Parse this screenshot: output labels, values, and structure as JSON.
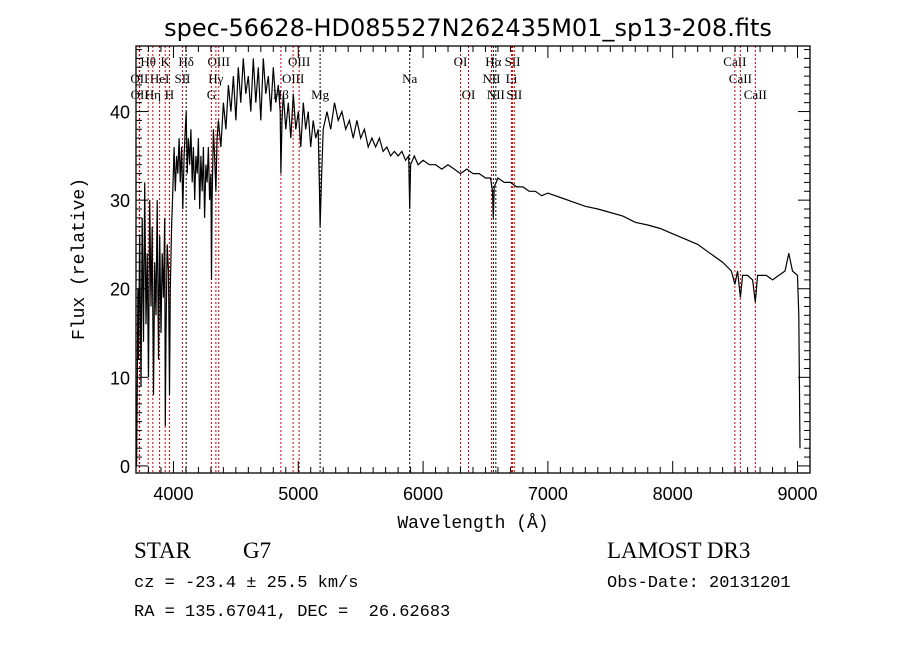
{
  "chart_data": {
    "type": "line",
    "title": "spec-56628-HD085527N262435M01_sp13-208.fits",
    "xlabel": "Wavelength (Å)",
    "ylabel": "Flux (relative)",
    "xlim": [
      3700,
      9100
    ],
    "ylim": [
      -0.8,
      47.4
    ],
    "x_ticks": [
      4000,
      5000,
      6000,
      7000,
      8000,
      9000
    ],
    "y_ticks": [
      0,
      10,
      20,
      30,
      40
    ],
    "grid": false,
    "series": [
      {
        "name": "spectrum",
        "color": "#000000",
        "wavelength": [
          3705,
          3710,
          3715,
          3720,
          3730,
          3740,
          3750,
          3760,
          3770,
          3780,
          3790,
          3800,
          3810,
          3820,
          3830,
          3840,
          3850,
          3860,
          3870,
          3880,
          3890,
          3900,
          3910,
          3920,
          3930,
          3935,
          3940,
          3950,
          3960,
          3968,
          3975,
          3985,
          3995,
          4005,
          4015,
          4025,
          4035,
          4045,
          4055,
          4065,
          4075,
          4085,
          4095,
          4102,
          4110,
          4120,
          4130,
          4140,
          4150,
          4160,
          4170,
          4180,
          4190,
          4200,
          4210,
          4220,
          4230,
          4240,
          4250,
          4260,
          4270,
          4280,
          4290,
          4300,
          4305,
          4310,
          4320,
          4330,
          4340,
          4350,
          4360,
          4380,
          4400,
          4420,
          4440,
          4460,
          4480,
          4500,
          4520,
          4540,
          4560,
          4580,
          4600,
          4620,
          4640,
          4660,
          4680,
          4700,
          4720,
          4740,
          4760,
          4780,
          4800,
          4820,
          4840,
          4855,
          4861,
          4870,
          4880,
          4900,
          4920,
          4940,
          4960,
          4980,
          5000,
          5020,
          5040,
          5060,
          5080,
          5100,
          5120,
          5140,
          5160,
          5170,
          5175,
          5185,
          5200,
          5230,
          5260,
          5290,
          5320,
          5350,
          5380,
          5410,
          5440,
          5470,
          5500,
          5530,
          5560,
          5590,
          5620,
          5650,
          5680,
          5710,
          5740,
          5770,
          5800,
          5830,
          5860,
          5885,
          5893,
          5900,
          5930,
          5960,
          6000,
          6050,
          6100,
          6150,
          6200,
          6250,
          6300,
          6350,
          6400,
          6450,
          6500,
          6540,
          6556,
          6563,
          6570,
          6600,
          6650,
          6700,
          6750,
          6800,
          6850,
          6900,
          6950,
          7000,
          7100,
          7200,
          7300,
          7400,
          7500,
          7600,
          7700,
          7800,
          7900,
          8000,
          8100,
          8200,
          8300,
          8400,
          8470,
          8498,
          8520,
          8542,
          8560,
          8600,
          8640,
          8662,
          8680,
          8750,
          8800,
          8850,
          8900,
          8930,
          8960,
          9000,
          9010,
          9020
        ],
        "flux": [
          0,
          8,
          20,
          12,
          26,
          9,
          28,
          14,
          32,
          16,
          24,
          10,
          30,
          18,
          27,
          8,
          23,
          17,
          30,
          12,
          26,
          15,
          24,
          19,
          28,
          4.5,
          15,
          25,
          22,
          8,
          20,
          27,
          31,
          36,
          31,
          35,
          33,
          37,
          32,
          36,
          29,
          35,
          38,
          40,
          33,
          37,
          34,
          38,
          32,
          36,
          30,
          35,
          33,
          37,
          29,
          35,
          31,
          36,
          28,
          34,
          32,
          36,
          30,
          33,
          21,
          30,
          38,
          35,
          31,
          37,
          39,
          36,
          41,
          38,
          43,
          40,
          44,
          39,
          45,
          41,
          46,
          42,
          44,
          40,
          46,
          41,
          45,
          39,
          46,
          42,
          44,
          40,
          45,
          41,
          43,
          40,
          33,
          39,
          42,
          38,
          41,
          37,
          42,
          38,
          40,
          36,
          41,
          38,
          40,
          36,
          39,
          37,
          38,
          31,
          27,
          32,
          38,
          40,
          38,
          41,
          39,
          40,
          38,
          39,
          37,
          39,
          37,
          38,
          36,
          37,
          36,
          37,
          35.5,
          36,
          35,
          35.5,
          35,
          35.5,
          34.5,
          35,
          29,
          34,
          35,
          34,
          34.5,
          34,
          34,
          33.5,
          34,
          33.5,
          33,
          33.5,
          33,
          33,
          32.5,
          32.5,
          31,
          28,
          31.5,
          32.5,
          32,
          32,
          31.5,
          31.5,
          31,
          31,
          30.5,
          30.8,
          30.3,
          29.8,
          29.3,
          29,
          28.6,
          28.2,
          27.5,
          27.2,
          26.8,
          26.2,
          25.6,
          25,
          24,
          23,
          22,
          20.5,
          22,
          19,
          21.5,
          21.5,
          21,
          18.5,
          21.5,
          21.5,
          21,
          21.5,
          22,
          24,
          22,
          21.5,
          17,
          2
        ]
      }
    ],
    "line_markers": [
      {
        "label": "Hθ",
        "wavelength": 3798,
        "row": 1,
        "color": "#cc0000"
      },
      {
        "label": "K",
        "wavelength": 3934,
        "row": 1,
        "color": "#cc0000"
      },
      {
        "label": "Hδ",
        "wavelength": 4102,
        "row": 1,
        "color": "#000000"
      },
      {
        "label": "OIII",
        "wavelength": 4363,
        "row": 1,
        "color": "#cc0000"
      },
      {
        "label": "OIII",
        "wavelength": 5007,
        "row": 1,
        "color": "#cc0000"
      },
      {
        "label": "OI",
        "wavelength": 6300,
        "row": 1,
        "color": "#cc0000"
      },
      {
        "label": "Hα",
        "wavelength": 6563,
        "row": 1,
        "color": "#000000"
      },
      {
        "label": "SII",
        "wavelength": 6717,
        "row": 1,
        "color": "#cc0000"
      },
      {
        "label": "CaII",
        "wavelength": 8498,
        "row": 1,
        "color": "#cc0000"
      },
      {
        "label": "OII",
        "wavelength": 3727,
        "row": 2,
        "color": "#cc0000"
      },
      {
        "label": "HeI",
        "wavelength": 3889,
        "row": 2,
        "color": "#cc0000"
      },
      {
        "label": "SII",
        "wavelength": 4072,
        "row": 2,
        "color": "#cc0000"
      },
      {
        "label": "Hγ",
        "wavelength": 4340,
        "row": 2,
        "color": "#cc0000"
      },
      {
        "label": "OIII",
        "wavelength": 4959,
        "row": 2,
        "color": "#cc0000"
      },
      {
        "label": "Na",
        "wavelength": 5893,
        "row": 2,
        "color": "#000000"
      },
      {
        "label": "NII",
        "wavelength": 6548,
        "row": 2,
        "color": "#cc0000"
      },
      {
        "label": "Li",
        "wavelength": 6708,
        "row": 2,
        "color": "#cc0000"
      },
      {
        "label": "CaII",
        "wavelength": 8542,
        "row": 2,
        "color": "#cc0000"
      },
      {
        "label": "OII",
        "wavelength": 3729,
        "row": 3,
        "color": "#cc0000"
      },
      {
        "label": "Hη",
        "wavelength": 3835,
        "row": 3,
        "color": "#cc0000"
      },
      {
        "label": "H",
        "wavelength": 3968,
        "row": 3,
        "color": "#cc0000"
      },
      {
        "label": "G",
        "wavelength": 4304,
        "row": 3,
        "color": "#cc0000"
      },
      {
        "label": "Hβ",
        "wavelength": 4861,
        "row": 3,
        "color": "#cc0000"
      },
      {
        "label": "Mg",
        "wavelength": 5175,
        "row": 3,
        "color": "#000000"
      },
      {
        "label": "OI",
        "wavelength": 6364,
        "row": 3,
        "color": "#cc0000"
      },
      {
        "label": "NII",
        "wavelength": 6583,
        "row": 3,
        "color": "#000000"
      },
      {
        "label": "SII",
        "wavelength": 6731,
        "row": 3,
        "color": "#cc0000"
      },
      {
        "label": "CaII",
        "wavelength": 8662,
        "row": 3,
        "color": "#cc0000"
      }
    ]
  },
  "info": {
    "object_class": "STAR",
    "subclass": "G7",
    "redshift": "cz = -23.4 ± 25.5 km/s",
    "coords": "RA = 135.67041, DEC =  26.62683",
    "survey": "LAMOST DR3",
    "obs_date": "Obs-Date: 20131201"
  }
}
